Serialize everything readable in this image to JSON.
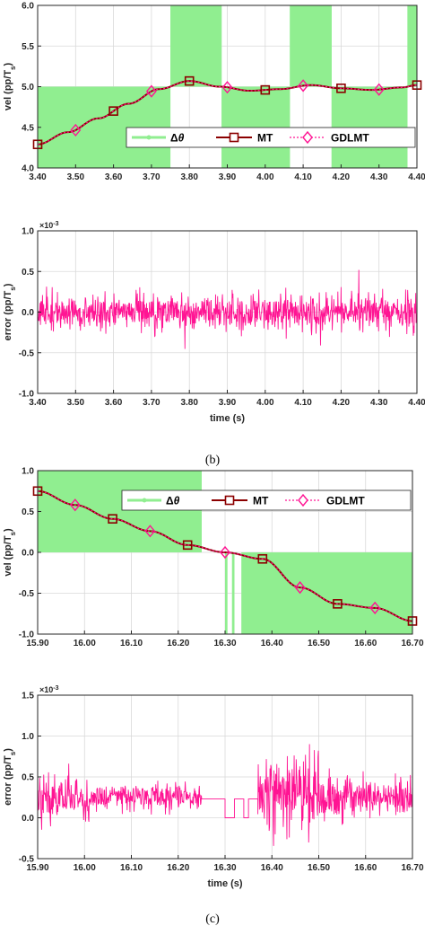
{
  "captions": {
    "b": "(b)",
    "c": "(c)"
  },
  "legend": {
    "dtheta": "Δθ",
    "mt": "MT",
    "gdlmt": "GDLMT"
  },
  "colors": {
    "dtheta": "#90EE90",
    "mt": "#8B0000",
    "gdlmt": "#FF1493",
    "error": "#FF1493"
  },
  "chart_data": [
    {
      "id": "b-vel",
      "type": "line",
      "ylabel_main": "vel (pp/T",
      "ylabel_sub": "s",
      "ylabel_end": ")",
      "xlim": [
        3.4,
        4.4
      ],
      "ylim": [
        4.0,
        6.0
      ],
      "xticks": [
        "3.40",
        "3.50",
        "3.60",
        "3.70",
        "3.80",
        "3.90",
        "4.00",
        "4.10",
        "4.20",
        "4.30",
        "4.40"
      ],
      "yticks": [
        "4.0",
        "4.5",
        "5.0",
        "5.5",
        "6.0"
      ],
      "grid": true,
      "legend_position": "bottom-right",
      "dtheta_segments": [
        {
          "x0": 3.4,
          "x1": 3.75,
          "low": 4.0,
          "high": 5.0
        },
        {
          "x0": 3.75,
          "x1": 3.885,
          "low": 5.0,
          "high": 6.0
        },
        {
          "x0": 3.885,
          "x1": 4.065,
          "low": 4.0,
          "high": 5.0
        },
        {
          "x0": 4.065,
          "x1": 4.175,
          "low": 5.0,
          "high": 6.0
        },
        {
          "x0": 4.175,
          "x1": 4.375,
          "low": 4.0,
          "high": 5.0
        },
        {
          "x0": 4.375,
          "x1": 4.4,
          "low": 5.0,
          "high": 6.0
        }
      ],
      "series": [
        {
          "key": "mt",
          "x": [
            3.4,
            3.48,
            3.56,
            3.64,
            3.72,
            3.8,
            3.88,
            3.96,
            4.04,
            4.12,
            4.2,
            4.28,
            4.36,
            4.4
          ],
          "y": [
            4.29,
            4.44,
            4.61,
            4.79,
            4.97,
            5.07,
            5.0,
            4.95,
            4.97,
            5.02,
            4.98,
            4.96,
            4.99,
            5.02
          ]
        },
        {
          "key": "gdlmt",
          "x": [
            3.4,
            3.48,
            3.56,
            3.64,
            3.72,
            3.8,
            3.88,
            3.96,
            4.04,
            4.12,
            4.2,
            4.28,
            4.36,
            4.4
          ],
          "y": [
            4.29,
            4.44,
            4.61,
            4.79,
            4.97,
            5.07,
            5.0,
            4.95,
            4.97,
            5.02,
            4.98,
            4.96,
            4.99,
            5.02
          ]
        }
      ],
      "mt_markers_x": [
        3.4,
        3.6,
        3.8,
        4.0,
        4.2,
        4.4
      ],
      "gdlmt_markers_x": [
        3.5,
        3.7,
        3.9,
        4.1,
        4.3
      ]
    },
    {
      "id": "b-err",
      "type": "line",
      "ylabel_main": "error (pp/T",
      "ylabel_sub": "s",
      "ylabel_end": ")",
      "xlabel": "time (s)",
      "exponent": "×10",
      "exponent_power": "-3",
      "xlim": [
        3.4,
        4.4
      ],
      "ylim": [
        -1.0,
        1.0
      ],
      "xticks": [
        "3.40",
        "3.50",
        "3.60",
        "3.70",
        "3.80",
        "3.90",
        "4.00",
        "4.10",
        "4.20",
        "4.30",
        "4.40"
      ],
      "yticks": [
        "-1.0",
        "-0.5",
        "0.0",
        "0.5",
        "1.0"
      ],
      "grid": true,
      "noise_envelope": [
        {
          "x0": 3.4,
          "x1": 4.4,
          "amplitude": 0.35,
          "peak": 0.58
        }
      ]
    },
    {
      "id": "c-vel",
      "type": "line",
      "ylabel_main": "vel (pp/T",
      "ylabel_sub": "s",
      "ylabel_end": ")",
      "xlim": [
        15.9,
        16.7
      ],
      "ylim": [
        -1.0,
        1.0
      ],
      "xticks": [
        "15.90",
        "16.00",
        "16.10",
        "16.20",
        "16.30",
        "16.40",
        "16.50",
        "16.60",
        "16.70"
      ],
      "yticks": [
        "-1.0",
        "-0.5",
        "0.0",
        "0.5",
        "1.0"
      ],
      "grid": true,
      "legend_position": "top-right",
      "dtheta_segments": [
        {
          "x0": 15.9,
          "x1": 16.25,
          "low": 0.0,
          "high": 1.0
        },
        {
          "x0": 16.3,
          "x1": 16.305,
          "low": -1.0,
          "high": 0.0
        },
        {
          "x0": 16.315,
          "x1": 16.32,
          "low": -1.0,
          "high": 0.0
        },
        {
          "x0": 16.335,
          "x1": 16.7,
          "low": -1.0,
          "high": 0.0
        }
      ],
      "series": [
        {
          "key": "mt",
          "x": [
            15.9,
            15.98,
            16.06,
            16.14,
            16.22,
            16.3,
            16.38,
            16.46,
            16.54,
            16.62,
            16.7
          ],
          "y": [
            0.75,
            0.58,
            0.41,
            0.26,
            0.09,
            0.0,
            -0.08,
            -0.43,
            -0.63,
            -0.68,
            -0.84
          ]
        },
        {
          "key": "gdlmt",
          "x": [
            15.9,
            15.98,
            16.06,
            16.14,
            16.22,
            16.3,
            16.38,
            16.46,
            16.54,
            16.62,
            16.7
          ],
          "y": [
            0.75,
            0.58,
            0.41,
            0.26,
            0.09,
            0.0,
            -0.08,
            -0.43,
            -0.63,
            -0.68,
            -0.84
          ]
        }
      ],
      "mt_markers_x": [
        15.9,
        16.06,
        16.22,
        16.38,
        16.54,
        16.7
      ],
      "gdlmt_markers_x": [
        15.98,
        16.14,
        16.3,
        16.46,
        16.62
      ]
    },
    {
      "id": "c-err",
      "type": "line",
      "ylabel_main": "error (pp/T",
      "ylabel_sub": "s",
      "ylabel_end": ")",
      "xlabel": "time (s)",
      "exponent": "×10",
      "exponent_power": "-3",
      "xlim": [
        15.9,
        16.7
      ],
      "ylim": [
        -0.5,
        1.5
      ],
      "xticks": [
        "15.90",
        "16.00",
        "16.10",
        "16.20",
        "16.30",
        "16.40",
        "16.50",
        "16.60",
        "16.70"
      ],
      "yticks": [
        "-0.5",
        "0.0",
        "0.5",
        "1.0",
        "1.5"
      ],
      "grid": true,
      "noise_envelope": [
        {
          "x0": 15.9,
          "x1": 16.01,
          "center": 0.25,
          "amplitude": 0.45
        },
        {
          "x0": 16.01,
          "x1": 16.25,
          "center": 0.25,
          "amplitude": 0.25
        },
        {
          "x0": 16.37,
          "x1": 16.5,
          "center": 0.3,
          "amplitude": 0.75
        },
        {
          "x0": 16.5,
          "x1": 16.7,
          "center": 0.25,
          "amplitude": 0.4
        }
      ],
      "flat_segments": [
        {
          "x": [
            16.25,
            16.28,
            16.28,
            16.3,
            16.3,
            16.32,
            16.32,
            16.34,
            16.34,
            16.35,
            16.35,
            16.37
          ],
          "y": [
            0.23,
            0.23,
            0.23,
            0.23,
            0.0,
            0.0,
            0.23,
            0.23,
            0.0,
            0.0,
            0.23,
            0.23
          ]
        }
      ]
    }
  ]
}
